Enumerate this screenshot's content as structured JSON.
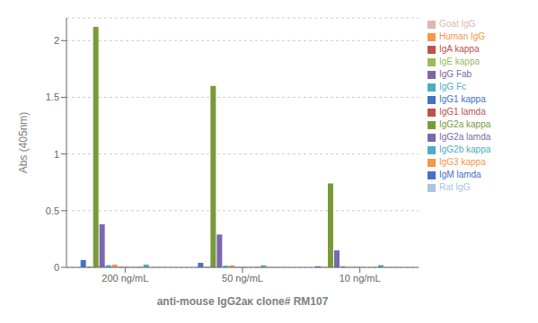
{
  "chart_data": {
    "type": "bar",
    "categories": [
      "200 ng/mL",
      "50 ng/mL",
      "10 ng/mL"
    ],
    "series": [
      {
        "name": "IgG1 kappa",
        "color": "#4472C4",
        "values": [
          0.065,
          0.04,
          0.01
        ]
      },
      {
        "name": "IgG1 lamda",
        "color": "#C0504D",
        "values": [
          0.005,
          0.004,
          0.003
        ]
      },
      {
        "name": "IgG2a kappa",
        "color": "#7A9A3A",
        "values": [
          2.12,
          1.6,
          0.74
        ]
      },
      {
        "name": "IgG2a lamda",
        "color": "#7B68B0",
        "values": [
          0.38,
          0.29,
          0.15
        ]
      },
      {
        "name": "IgG2b kappa",
        "color": "#4BACC6",
        "values": [
          0.02,
          0.015,
          0.01
        ]
      },
      {
        "name": "IgG3 kappa",
        "color": "#F79646",
        "values": [
          0.025,
          0.018,
          0.005
        ]
      },
      {
        "name": "IgM lamda",
        "color": "#4472C4",
        "values": [
          0.005,
          0.004,
          0.003
        ]
      },
      {
        "name": "IgA kappa",
        "color": "#C0504D",
        "values": [
          0.004,
          0.003,
          0.002
        ]
      },
      {
        "name": "IgE kappa",
        "color": "#9BBB59",
        "values": [
          0.003,
          0.003,
          0.002
        ]
      },
      {
        "name": "IgG Fab",
        "color": "#8064A2",
        "values": [
          0.004,
          0.003,
          0.002
        ]
      },
      {
        "name": "IgG Fc",
        "color": "#4BACC6",
        "values": [
          0.025,
          0.018,
          0.02
        ]
      },
      {
        "name": "Human IgG",
        "color": "#F79646",
        "values": [
          0.003,
          0.003,
          0.002
        ]
      },
      {
        "name": "Rat IgG",
        "color": "#A9C4E4",
        "values": [
          0.003,
          0.003,
          0.003
        ]
      },
      {
        "name": "Goat IgG",
        "color": "#DFB7B0",
        "values": [
          0.003,
          0.002,
          0.002
        ]
      }
    ],
    "xlabel": "anti-mouse IgG2aκ clone# RM107",
    "ylabel": "Abs (405nm)",
    "ylim": [
      0,
      2.2
    ],
    "yticks": [
      0,
      0.5,
      1,
      1.5,
      2
    ],
    "grid": true,
    "legend": "right"
  }
}
